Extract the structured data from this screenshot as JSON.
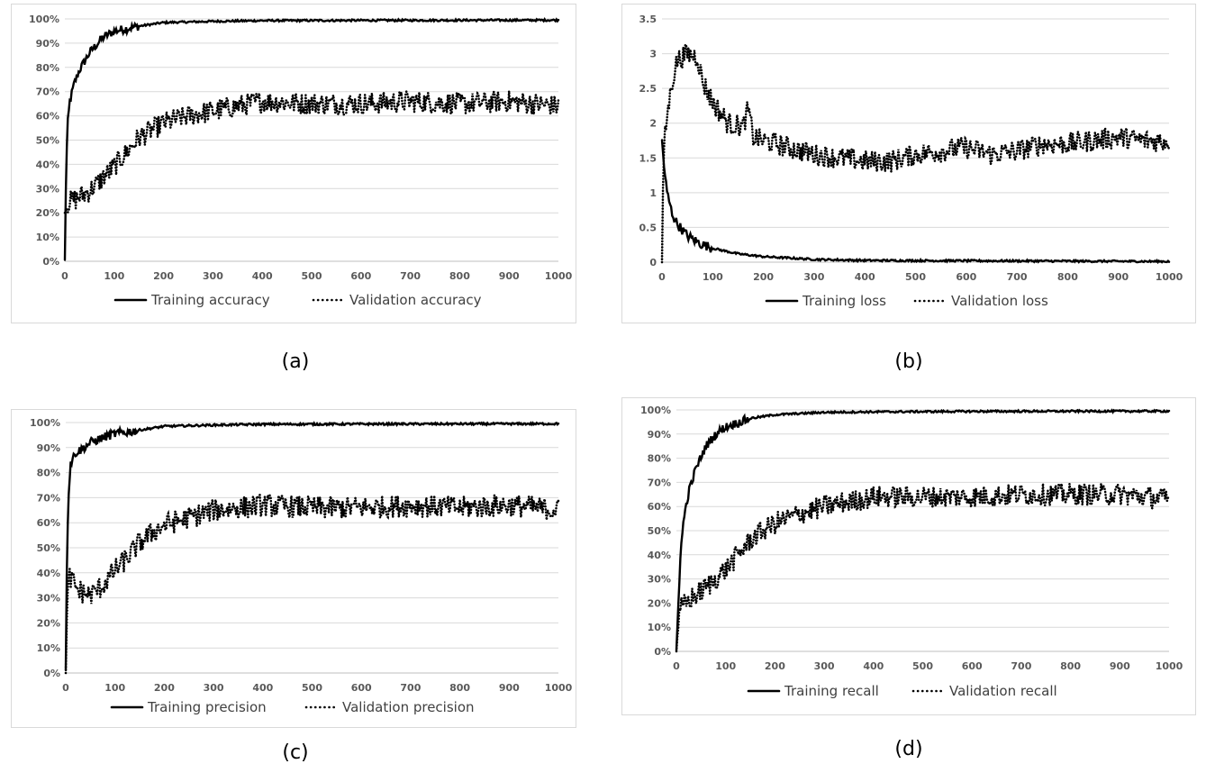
{
  "chart_data": [
    {
      "id": "a",
      "type": "line",
      "caption": "(a)",
      "x_range": [
        0,
        1000
      ],
      "x_ticks": [
        0,
        100,
        200,
        300,
        400,
        500,
        600,
        700,
        800,
        900,
        1000
      ],
      "y_range": [
        0,
        100
      ],
      "y_ticks": [
        0,
        10,
        20,
        30,
        40,
        50,
        60,
        70,
        80,
        90,
        100
      ],
      "y_tick_labels": [
        "0%",
        "10%",
        "20%",
        "30%",
        "40%",
        "50%",
        "60%",
        "70%",
        "80%",
        "90%",
        "100%"
      ],
      "grid": true,
      "legend_position": "bottom",
      "series": [
        {
          "name": "Training accuracy",
          "style": "solid",
          "points": [
            [
              0,
              0
            ],
            [
              2,
              30
            ],
            [
              5,
              55
            ],
            [
              10,
              66
            ],
            [
              20,
              74
            ],
            [
              30,
              79
            ],
            [
              50,
              86
            ],
            [
              75,
              92
            ],
            [
              100,
              95
            ],
            [
              150,
              97
            ],
            [
              200,
              98.5
            ],
            [
              300,
              99
            ],
            [
              400,
              99.3
            ],
            [
              600,
              99.4
            ],
            [
              1000,
              99.5
            ]
          ]
        },
        {
          "name": "Validation accuracy",
          "style": "dotted",
          "points": [
            [
              0,
              20
            ],
            [
              5,
              24
            ],
            [
              25,
              26
            ],
            [
              50,
              29
            ],
            [
              75,
              34
            ],
            [
              100,
              39
            ],
            [
              125,
              45
            ],
            [
              150,
              51
            ],
            [
              175,
              54
            ],
            [
              200,
              57
            ],
            [
              250,
              60
            ],
            [
              300,
              62
            ],
            [
              350,
              64
            ],
            [
              400,
              66
            ],
            [
              500,
              65
            ],
            [
              600,
              65
            ],
            [
              700,
              66
            ],
            [
              800,
              65
            ],
            [
              900,
              66
            ],
            [
              1000,
              64
            ]
          ]
        }
      ]
    },
    {
      "id": "b",
      "type": "line",
      "caption": "(b)",
      "x_range": [
        0,
        1000
      ],
      "x_ticks": [
        0,
        100,
        200,
        300,
        400,
        500,
        600,
        700,
        800,
        900,
        1000
      ],
      "y_range": [
        0,
        3.5
      ],
      "y_ticks": [
        0,
        0.5,
        1,
        1.5,
        2,
        2.5,
        3,
        3.5
      ],
      "y_tick_labels": [
        "0",
        "0.5",
        "1",
        "1.5",
        "2",
        "2.5",
        "3",
        "3.5"
      ],
      "grid": true,
      "legend_position": "bottom",
      "series": [
        {
          "name": "Training loss",
          "style": "solid",
          "points": [
            [
              0,
              1.75
            ],
            [
              5,
              1.3
            ],
            [
              10,
              1.0
            ],
            [
              20,
              0.7
            ],
            [
              30,
              0.55
            ],
            [
              50,
              0.38
            ],
            [
              75,
              0.27
            ],
            [
              100,
              0.2
            ],
            [
              150,
              0.12
            ],
            [
              200,
              0.08
            ],
            [
              300,
              0.04
            ],
            [
              400,
              0.025
            ],
            [
              600,
              0.02
            ],
            [
              1000,
              0.01
            ]
          ]
        },
        {
          "name": "Validation loss",
          "style": "dotted",
          "points": [
            [
              0,
              0
            ],
            [
              3,
              1.6
            ],
            [
              10,
              2.1
            ],
            [
              20,
              2.6
            ],
            [
              30,
              2.9
            ],
            [
              50,
              3.0
            ],
            [
              70,
              2.95
            ],
            [
              80,
              2.6
            ],
            [
              100,
              2.3
            ],
            [
              130,
              2.0
            ],
            [
              160,
              1.95
            ],
            [
              170,
              2.2
            ],
            [
              180,
              1.8
            ],
            [
              200,
              1.75
            ],
            [
              250,
              1.65
            ],
            [
              300,
              1.55
            ],
            [
              350,
              1.5
            ],
            [
              400,
              1.45
            ],
            [
              450,
              1.45
            ],
            [
              500,
              1.55
            ],
            [
              550,
              1.6
            ],
            [
              600,
              1.65
            ],
            [
              650,
              1.55
            ],
            [
              700,
              1.6
            ],
            [
              750,
              1.7
            ],
            [
              800,
              1.7
            ],
            [
              850,
              1.75
            ],
            [
              900,
              1.8
            ],
            [
              950,
              1.75
            ],
            [
              1000,
              1.75
            ]
          ]
        }
      ]
    },
    {
      "id": "c",
      "type": "line",
      "caption": "(c)",
      "x_range": [
        0,
        1000
      ],
      "x_ticks": [
        0,
        100,
        200,
        300,
        400,
        500,
        600,
        700,
        800,
        900,
        1000
      ],
      "y_range": [
        0,
        100
      ],
      "y_ticks": [
        0,
        10,
        20,
        30,
        40,
        50,
        60,
        70,
        80,
        90,
        100
      ],
      "y_tick_labels": [
        "0%",
        "10%",
        "20%",
        "30%",
        "40%",
        "50%",
        "60%",
        "70%",
        "80%",
        "90%",
        "100%"
      ],
      "grid": true,
      "legend_position": "bottom",
      "series": [
        {
          "name": "Training precision",
          "style": "solid",
          "points": [
            [
              0,
              0
            ],
            [
              2,
              40
            ],
            [
              5,
              70
            ],
            [
              10,
              84
            ],
            [
              20,
              88
            ],
            [
              30,
              89
            ],
            [
              50,
              92
            ],
            [
              75,
              94
            ],
            [
              100,
              95.5
            ],
            [
              150,
              97
            ],
            [
              200,
              98.5
            ],
            [
              300,
              99
            ],
            [
              400,
              99.3
            ],
            [
              600,
              99.4
            ],
            [
              1000,
              99.5
            ]
          ]
        },
        {
          "name": "Validation precision",
          "style": "dotted",
          "points": [
            [
              0,
              0
            ],
            [
              3,
              30
            ],
            [
              8,
              38
            ],
            [
              15,
              36
            ],
            [
              25,
              33
            ],
            [
              50,
              31
            ],
            [
              75,
              35
            ],
            [
              100,
              41
            ],
            [
              125,
              46
            ],
            [
              150,
              52
            ],
            [
              175,
              56
            ],
            [
              200,
              59
            ],
            [
              250,
              62
            ],
            [
              300,
              65
            ],
            [
              350,
              66
            ],
            [
              400,
              67
            ],
            [
              500,
              66
            ],
            [
              600,
              66
            ],
            [
              700,
              67
            ],
            [
              800,
              66
            ],
            [
              900,
              67
            ],
            [
              1000,
              65
            ]
          ]
        }
      ]
    },
    {
      "id": "d",
      "type": "line",
      "caption": "(d)",
      "x_range": [
        0,
        1000
      ],
      "x_ticks": [
        0,
        100,
        200,
        300,
        400,
        500,
        600,
        700,
        800,
        900,
        1000
      ],
      "y_range": [
        0,
        100
      ],
      "y_ticks": [
        0,
        10,
        20,
        30,
        40,
        50,
        60,
        70,
        80,
        90,
        100
      ],
      "y_tick_labels": [
        "0%",
        "10%",
        "20%",
        "30%",
        "40%",
        "50%",
        "60%",
        "70%",
        "80%",
        "90%",
        "100%"
      ],
      "grid": true,
      "legend_position": "bottom",
      "series": [
        {
          "name": "Training recall",
          "style": "solid",
          "points": [
            [
              0,
              0
            ],
            [
              3,
              15
            ],
            [
              8,
              40
            ],
            [
              15,
              55
            ],
            [
              25,
              66
            ],
            [
              40,
              76
            ],
            [
              60,
              85
            ],
            [
              80,
              90
            ],
            [
              100,
              93
            ],
            [
              150,
              96.5
            ],
            [
              200,
              98
            ],
            [
              300,
              99
            ],
            [
              400,
              99.2
            ],
            [
              600,
              99.4
            ],
            [
              1000,
              99.5
            ]
          ]
        },
        {
          "name": "Validation recall",
          "style": "dotted",
          "points": [
            [
              0,
              0
            ],
            [
              4,
              12
            ],
            [
              10,
              18
            ],
            [
              25,
              21
            ],
            [
              50,
              25
            ],
            [
              75,
              29
            ],
            [
              100,
              34
            ],
            [
              125,
              40
            ],
            [
              150,
              46
            ],
            [
              175,
              50
            ],
            [
              200,
              53
            ],
            [
              250,
              57
            ],
            [
              300,
              60
            ],
            [
              350,
              62
            ],
            [
              400,
              64
            ],
            [
              500,
              64
            ],
            [
              600,
              64
            ],
            [
              700,
              65
            ],
            [
              800,
              65
            ],
            [
              900,
              65
            ],
            [
              1000,
              63
            ]
          ]
        }
      ]
    }
  ]
}
